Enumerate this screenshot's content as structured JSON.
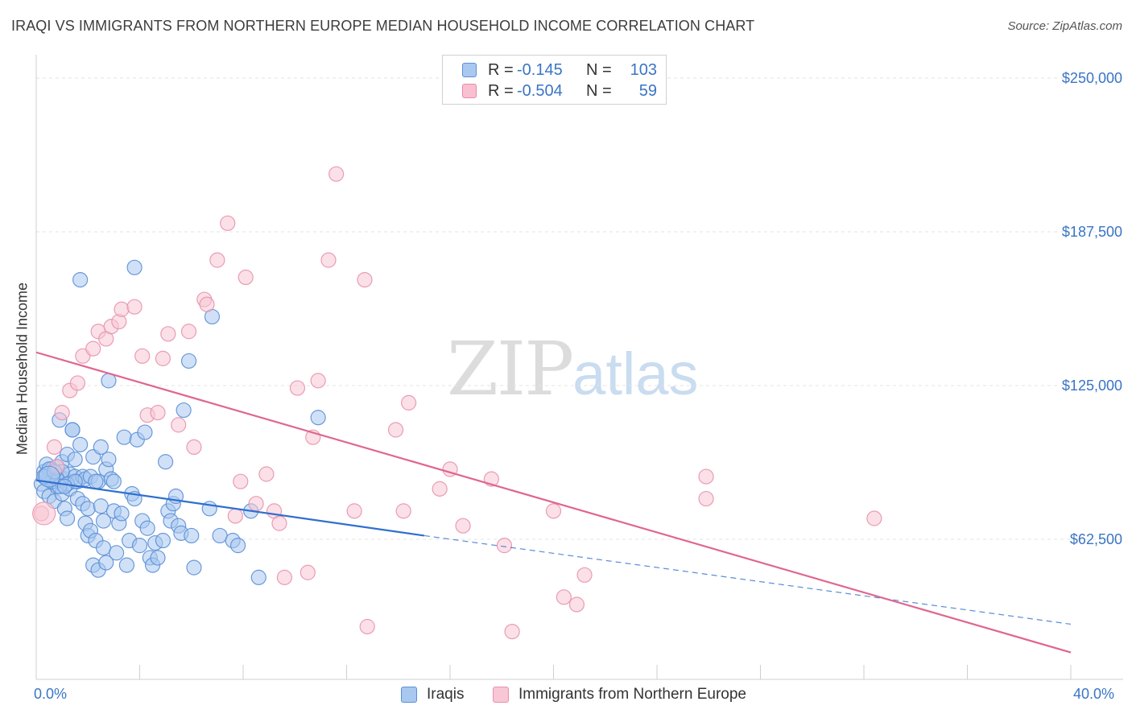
{
  "header": {
    "title": "IRAQI VS IMMIGRANTS FROM NORTHERN EUROPE MEDIAN HOUSEHOLD INCOME CORRELATION CHART",
    "source": "Source: ZipAtlas.com"
  },
  "watermark": {
    "part1": "ZIP",
    "part2": "atlas"
  },
  "legend_top": {
    "rows": [
      {
        "r_label": "R =",
        "r_value": "-0.145",
        "n_label": "N =",
        "n_value": "103",
        "color": "#a9c8f0",
        "border": "#5b8fd6"
      },
      {
        "r_label": "R =",
        "r_value": "-0.504",
        "n_label": "N =",
        "n_value": "59",
        "color": "#f8c0d0",
        "border": "#e88aa8"
      }
    ]
  },
  "colors": {
    "blue_fill": "#a9c8f0",
    "blue_stroke": "#5b8fd6",
    "blue_line": "#2f6fcf",
    "pink_fill": "#f8c6d4",
    "pink_stroke": "#e892ad",
    "pink_line": "#e0668f",
    "tick_text": "#3a75c4",
    "grid": "#e3e3e3"
  },
  "chart_data": {
    "type": "scatter",
    "title": "IRAQI VS IMMIGRANTS FROM NORTHERN EUROPE MEDIAN HOUSEHOLD INCOME CORRELATION CHART",
    "xlabel": "",
    "ylabel": "Median Household Income",
    "xlim": [
      0,
      40
    ],
    "ylim": [
      25000,
      250000
    ],
    "x_tick_labels": [
      "0.0%",
      "40.0%"
    ],
    "y_ticks": [
      62500,
      125000,
      187500,
      250000
    ],
    "y_tick_labels": [
      "$62,500",
      "$125,000",
      "$187,500",
      "$250,000"
    ],
    "grid": true,
    "legend_position": "bottom",
    "series": [
      {
        "name": "Iraqis",
        "points": [
          [
            0.2,
            85000
          ],
          [
            0.3,
            90000
          ],
          [
            0.3,
            82000
          ],
          [
            0.4,
            93000
          ],
          [
            0.5,
            88000
          ],
          [
            0.5,
            80000
          ],
          [
            0.6,
            91000
          ],
          [
            0.7,
            86000
          ],
          [
            0.7,
            78000
          ],
          [
            0.8,
            92000
          ],
          [
            0.8,
            84000
          ],
          [
            0.9,
            88000
          ],
          [
            0.9,
            111000
          ],
          [
            1.0,
            94000
          ],
          [
            1.0,
            81000
          ],
          [
            1.1,
            87000
          ],
          [
            1.1,
            75000
          ],
          [
            1.2,
            97000
          ],
          [
            1.2,
            71000
          ],
          [
            1.3,
            89000
          ],
          [
            1.3,
            83000
          ],
          [
            1.4,
            107000
          ],
          [
            1.4,
            107000
          ],
          [
            1.5,
            95000
          ],
          [
            1.5,
            88000
          ],
          [
            1.6,
            86000
          ],
          [
            1.6,
            79000
          ],
          [
            1.7,
            101000
          ],
          [
            1.7,
            168000
          ],
          [
            1.8,
            88000
          ],
          [
            1.8,
            77000
          ],
          [
            1.9,
            87000
          ],
          [
            1.9,
            69000
          ],
          [
            2.0,
            64000
          ],
          [
            2.0,
            75000
          ],
          [
            2.1,
            66000
          ],
          [
            2.1,
            88000
          ],
          [
            2.2,
            96000
          ],
          [
            2.2,
            52000
          ],
          [
            2.3,
            62000
          ],
          [
            2.4,
            86000
          ],
          [
            2.4,
            50000
          ],
          [
            2.5,
            100000
          ],
          [
            2.5,
            76000
          ],
          [
            2.6,
            59000
          ],
          [
            2.6,
            70000
          ],
          [
            2.7,
            53000
          ],
          [
            2.7,
            91000
          ],
          [
            2.8,
            95000
          ],
          [
            2.8,
            127000
          ],
          [
            2.9,
            87000
          ],
          [
            3.0,
            74000
          ],
          [
            3.0,
            86000
          ],
          [
            3.1,
            57000
          ],
          [
            3.2,
            69000
          ],
          [
            3.3,
            73000
          ],
          [
            3.4,
            104000
          ],
          [
            3.5,
            52000
          ],
          [
            3.6,
            62000
          ],
          [
            3.7,
            81000
          ],
          [
            3.8,
            79000
          ],
          [
            3.9,
            103000
          ],
          [
            4.0,
            60000
          ],
          [
            4.1,
            70000
          ],
          [
            4.2,
            106000
          ],
          [
            4.3,
            67000
          ],
          [
            4.4,
            55000
          ],
          [
            4.5,
            52000
          ],
          [
            4.6,
            61000
          ],
          [
            4.7,
            55000
          ],
          [
            4.9,
            62000
          ],
          [
            5.0,
            94000
          ],
          [
            5.1,
            74000
          ],
          [
            5.2,
            70000
          ],
          [
            5.3,
            77000
          ],
          [
            5.4,
            80000
          ],
          [
            5.5,
            68000
          ],
          [
            5.6,
            65000
          ],
          [
            5.7,
            115000
          ],
          [
            5.9,
            135000
          ],
          [
            6.0,
            64000
          ],
          [
            6.1,
            51000
          ],
          [
            6.7,
            75000
          ],
          [
            6.8,
            153000
          ],
          [
            7.1,
            64000
          ],
          [
            7.6,
            62000
          ],
          [
            7.8,
            60000
          ],
          [
            8.3,
            74000
          ],
          [
            8.6,
            47000
          ],
          [
            10.9,
            112000
          ],
          [
            3.8,
            173000
          ],
          [
            0.4,
            89000
          ],
          [
            0.6,
            86000
          ],
          [
            1.0,
            90000
          ],
          [
            0.8,
            87000
          ],
          [
            1.2,
            85000
          ],
          [
            0.5,
            91000
          ],
          [
            0.9,
            84000
          ],
          [
            1.5,
            86000
          ],
          [
            0.3,
            88000
          ],
          [
            0.7,
            90000
          ],
          [
            1.1,
            84000
          ],
          [
            2.3,
            86000
          ]
        ]
      },
      {
        "name": "Immigrants from Northern Europe",
        "points": [
          [
            0.2,
            73000
          ],
          [
            0.7,
            100000
          ],
          [
            1.0,
            114000
          ],
          [
            1.3,
            123000
          ],
          [
            1.6,
            126000
          ],
          [
            1.8,
            137000
          ],
          [
            2.2,
            140000
          ],
          [
            2.4,
            147000
          ],
          [
            2.7,
            144000
          ],
          [
            2.9,
            149000
          ],
          [
            3.2,
            151000
          ],
          [
            3.3,
            156000
          ],
          [
            3.8,
            157000
          ],
          [
            4.1,
            137000
          ],
          [
            4.3,
            113000
          ],
          [
            4.7,
            114000
          ],
          [
            4.9,
            136000
          ],
          [
            5.1,
            146000
          ],
          [
            5.5,
            109000
          ],
          [
            5.9,
            147000
          ],
          [
            6.1,
            100000
          ],
          [
            6.5,
            160000
          ],
          [
            6.6,
            158000
          ],
          [
            7.0,
            176000
          ],
          [
            7.4,
            191000
          ],
          [
            7.7,
            72000
          ],
          [
            7.9,
            86000
          ],
          [
            8.1,
            169000
          ],
          [
            8.5,
            77000
          ],
          [
            8.9,
            89000
          ],
          [
            9.2,
            74000
          ],
          [
            9.4,
            69000
          ],
          [
            9.6,
            47000
          ],
          [
            10.1,
            124000
          ],
          [
            10.5,
            49000
          ],
          [
            10.7,
            104000
          ],
          [
            10.9,
            127000
          ],
          [
            11.3,
            176000
          ],
          [
            11.6,
            211000
          ],
          [
            12.3,
            74000
          ],
          [
            12.7,
            168000
          ],
          [
            12.8,
            27000
          ],
          [
            13.9,
            107000
          ],
          [
            14.2,
            74000
          ],
          [
            14.4,
            118000
          ],
          [
            15.6,
            83000
          ],
          [
            16.0,
            91000
          ],
          [
            16.5,
            68000
          ],
          [
            17.6,
            87000
          ],
          [
            18.1,
            60000
          ],
          [
            18.4,
            25000
          ],
          [
            20.0,
            74000
          ],
          [
            20.4,
            39000
          ],
          [
            20.9,
            36000
          ],
          [
            21.2,
            48000
          ],
          [
            25.9,
            88000
          ],
          [
            25.9,
            79000
          ],
          [
            32.4,
            71000
          ],
          [
            0.8,
            92000
          ]
        ]
      }
    ],
    "trend_lines": [
      {
        "series": "Iraqis",
        "x_start": 0,
        "y_start": 86500,
        "x_end": 15,
        "y_end": 64000,
        "dashed_x_end": 40,
        "dashed_y_end": 28000
      },
      {
        "series": "Immigrants from Northern Europe",
        "x_start": 0,
        "y_start": 138500,
        "x_end": 40,
        "y_end": 16500
      }
    ]
  },
  "bottom_legend": {
    "items": [
      {
        "label": "Iraqis",
        "color": "#a9c8f0",
        "border": "#5b8fd6"
      },
      {
        "label": "Immigrants from Northern Europe",
        "color": "#f8c6d4",
        "border": "#e892ad"
      }
    ]
  }
}
